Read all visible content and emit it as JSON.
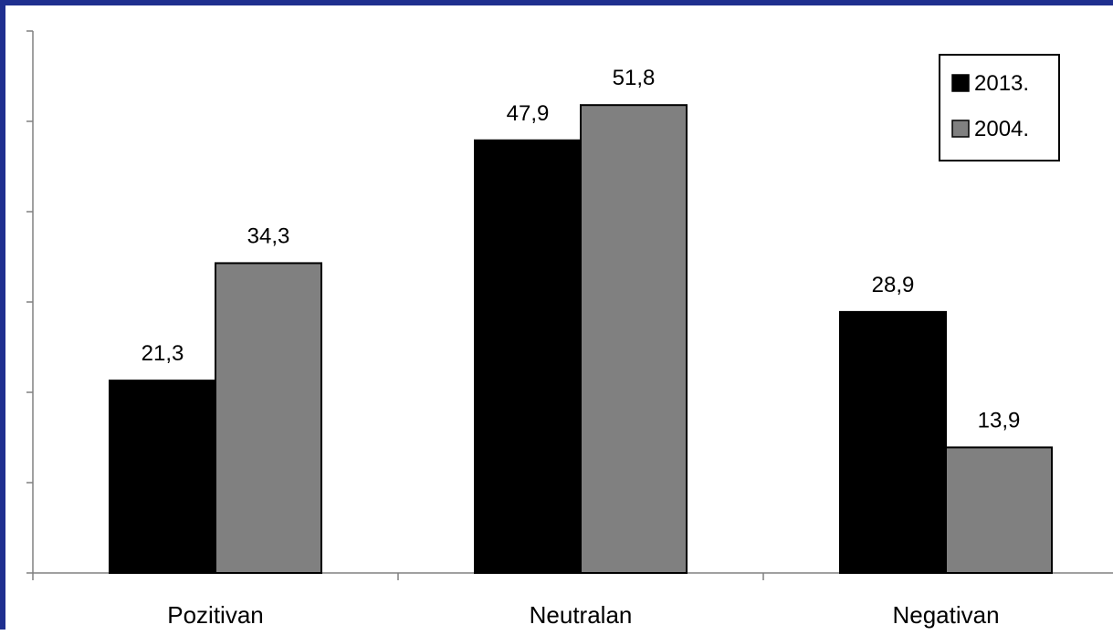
{
  "chart_data": {
    "type": "bar",
    "title": "",
    "xlabel": "",
    "ylabel": "",
    "categories": [
      "Pozitivan",
      "Neutralan",
      "Negativan"
    ],
    "series": [
      {
        "name": "2013.",
        "color": "#000000",
        "values": [
          21.3,
          47.9,
          28.9
        ],
        "labels": [
          "21,3",
          "47,9",
          "28,9"
        ]
      },
      {
        "name": "2004.",
        "color": "#808080",
        "values": [
          34.3,
          51.8,
          13.9
        ],
        "labels": [
          "34,3",
          "51,8",
          "13,9"
        ]
      }
    ],
    "ylim": [
      0,
      60
    ],
    "y_tick_values": [
      0,
      10,
      20,
      30,
      40,
      50,
      60
    ],
    "y_tick_labels_visible": false,
    "grid": false,
    "legend": "top-right",
    "frame_color": "#1f2f8f"
  }
}
